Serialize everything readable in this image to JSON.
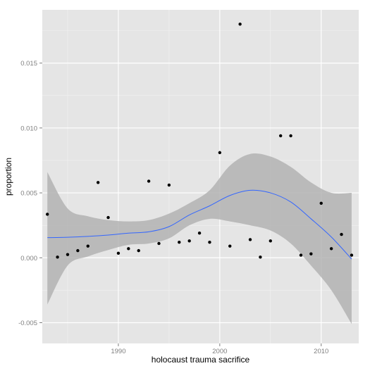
{
  "chart_data": {
    "type": "scatter",
    "xlabel": "holocaust trauma sacrifice",
    "ylabel": "proportion",
    "xlim": [
      1982.5,
      2013.7
    ],
    "ylim": [
      -0.0066,
      0.0191
    ],
    "x_ticks": [
      1990,
      2000,
      2010
    ],
    "x_tick_labels": [
      "1990",
      "2000",
      "2010"
    ],
    "y_ticks": [
      -0.005,
      0.0,
      0.005,
      0.01,
      0.015
    ],
    "y_tick_labels": [
      "-0.005",
      "0.000",
      "0.005",
      "0.010",
      "0.015"
    ],
    "grid": true,
    "panel_color": "#e5e5e5",
    "grid_color": "#ffffff",
    "point_color": "#000000",
    "smooth_color": "#3366ff",
    "band_color": "#b3b3b3",
    "points": [
      {
        "x": 1983,
        "y": 0.00335
      },
      {
        "x": 1984,
        "y": 5e-05
      },
      {
        "x": 1985,
        "y": 0.00025
      },
      {
        "x": 1986,
        "y": 0.00055
      },
      {
        "x": 1987,
        "y": 0.0009
      },
      {
        "x": 1988,
        "y": 0.0058
      },
      {
        "x": 1989,
        "y": 0.0031
      },
      {
        "x": 1990,
        "y": 0.00035
      },
      {
        "x": 1991,
        "y": 0.0007
      },
      {
        "x": 1992,
        "y": 0.00055
      },
      {
        "x": 1993,
        "y": 0.0059
      },
      {
        "x": 1994,
        "y": 0.0011
      },
      {
        "x": 1995,
        "y": 0.0056
      },
      {
        "x": 1996,
        "y": 0.0012
      },
      {
        "x": 1997,
        "y": 0.0013
      },
      {
        "x": 1998,
        "y": 0.0019
      },
      {
        "x": 1999,
        "y": 0.0012
      },
      {
        "x": 2000,
        "y": 0.0081
      },
      {
        "x": 2001,
        "y": 0.0009
      },
      {
        "x": 2002,
        "y": 0.018
      },
      {
        "x": 2003,
        "y": 0.0014
      },
      {
        "x": 2004,
        "y": 5e-05
      },
      {
        "x": 2005,
        "y": 0.0013
      },
      {
        "x": 2006,
        "y": 0.0094
      },
      {
        "x": 2007,
        "y": 0.0094
      },
      {
        "x": 2008,
        "y": 0.0002
      },
      {
        "x": 2009,
        "y": 0.0003
      },
      {
        "x": 2010,
        "y": 0.0042
      },
      {
        "x": 2011,
        "y": 0.0007
      },
      {
        "x": 2012,
        "y": 0.0018
      },
      {
        "x": 2013,
        "y": 0.0002
      }
    ],
    "smooth": {
      "x": [
        1983,
        1985,
        1987,
        1989,
        1991,
        1993,
        1995,
        1997,
        1999,
        2001,
        2003,
        2005,
        2007,
        2009,
        2011,
        2013
      ],
      "y": [
        0.00155,
        0.00158,
        0.00165,
        0.00175,
        0.0019,
        0.002,
        0.0024,
        0.0033,
        0.004,
        0.0048,
        0.0052,
        0.005,
        0.0043,
        0.003,
        0.0016,
        -0.0001
      ],
      "lower": [
        -0.0036,
        -0.0006,
        0.0001,
        0.0006,
        0.001,
        0.0011,
        0.0015,
        0.0025,
        0.003,
        0.0028,
        0.0025,
        0.0021,
        0.0011,
        -0.0006,
        -0.0025,
        -0.0051
      ],
      "upper": [
        0.0066,
        0.0038,
        0.0032,
        0.0029,
        0.0028,
        0.0029,
        0.0034,
        0.0042,
        0.0052,
        0.0071,
        0.008,
        0.0078,
        0.007,
        0.0058,
        0.005,
        0.005
      ]
    }
  }
}
